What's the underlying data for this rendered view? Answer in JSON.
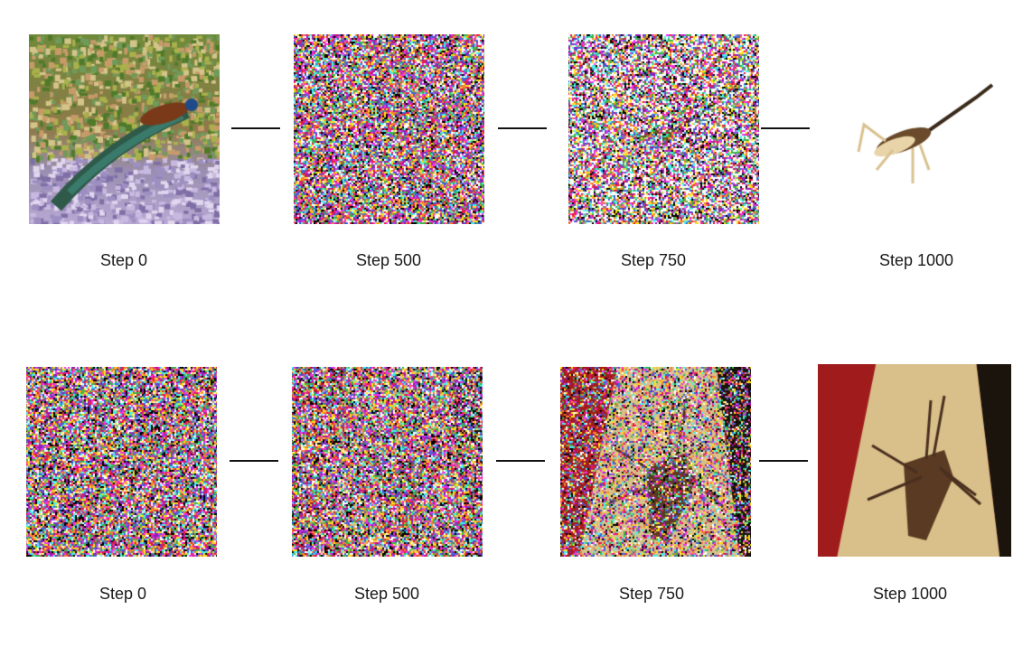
{
  "rows": [
    {
      "frames": [
        {
          "label": "Step 0",
          "description": "peacock-painting"
        },
        {
          "label": "Step 500",
          "description": "dense-noise-faint-shape"
        },
        {
          "label": "Step 750",
          "description": "noise-with-grasshopper"
        },
        {
          "label": "Step 1000",
          "description": "grasshopper-on-white"
        }
      ]
    },
    {
      "frames": [
        {
          "label": "Step 0",
          "description": "pure-noise"
        },
        {
          "label": "Step 500",
          "description": "noise-faint-diagonal"
        },
        {
          "label": "Step 750",
          "description": "noise-with-insect-on-board"
        },
        {
          "label": "Step 1000",
          "description": "insect-on-wooden-board"
        }
      ]
    }
  ],
  "colors": {
    "noise_palette": [
      "#e6194b",
      "#3cb44b",
      "#ffe119",
      "#4363d8",
      "#f58231",
      "#911eb4",
      "#46f0f0",
      "#f032e6",
      "#ffffff",
      "#000000"
    ],
    "wood": "#d9c08a",
    "red_bg": "#a01c1c",
    "insect": "#5a3a22"
  }
}
